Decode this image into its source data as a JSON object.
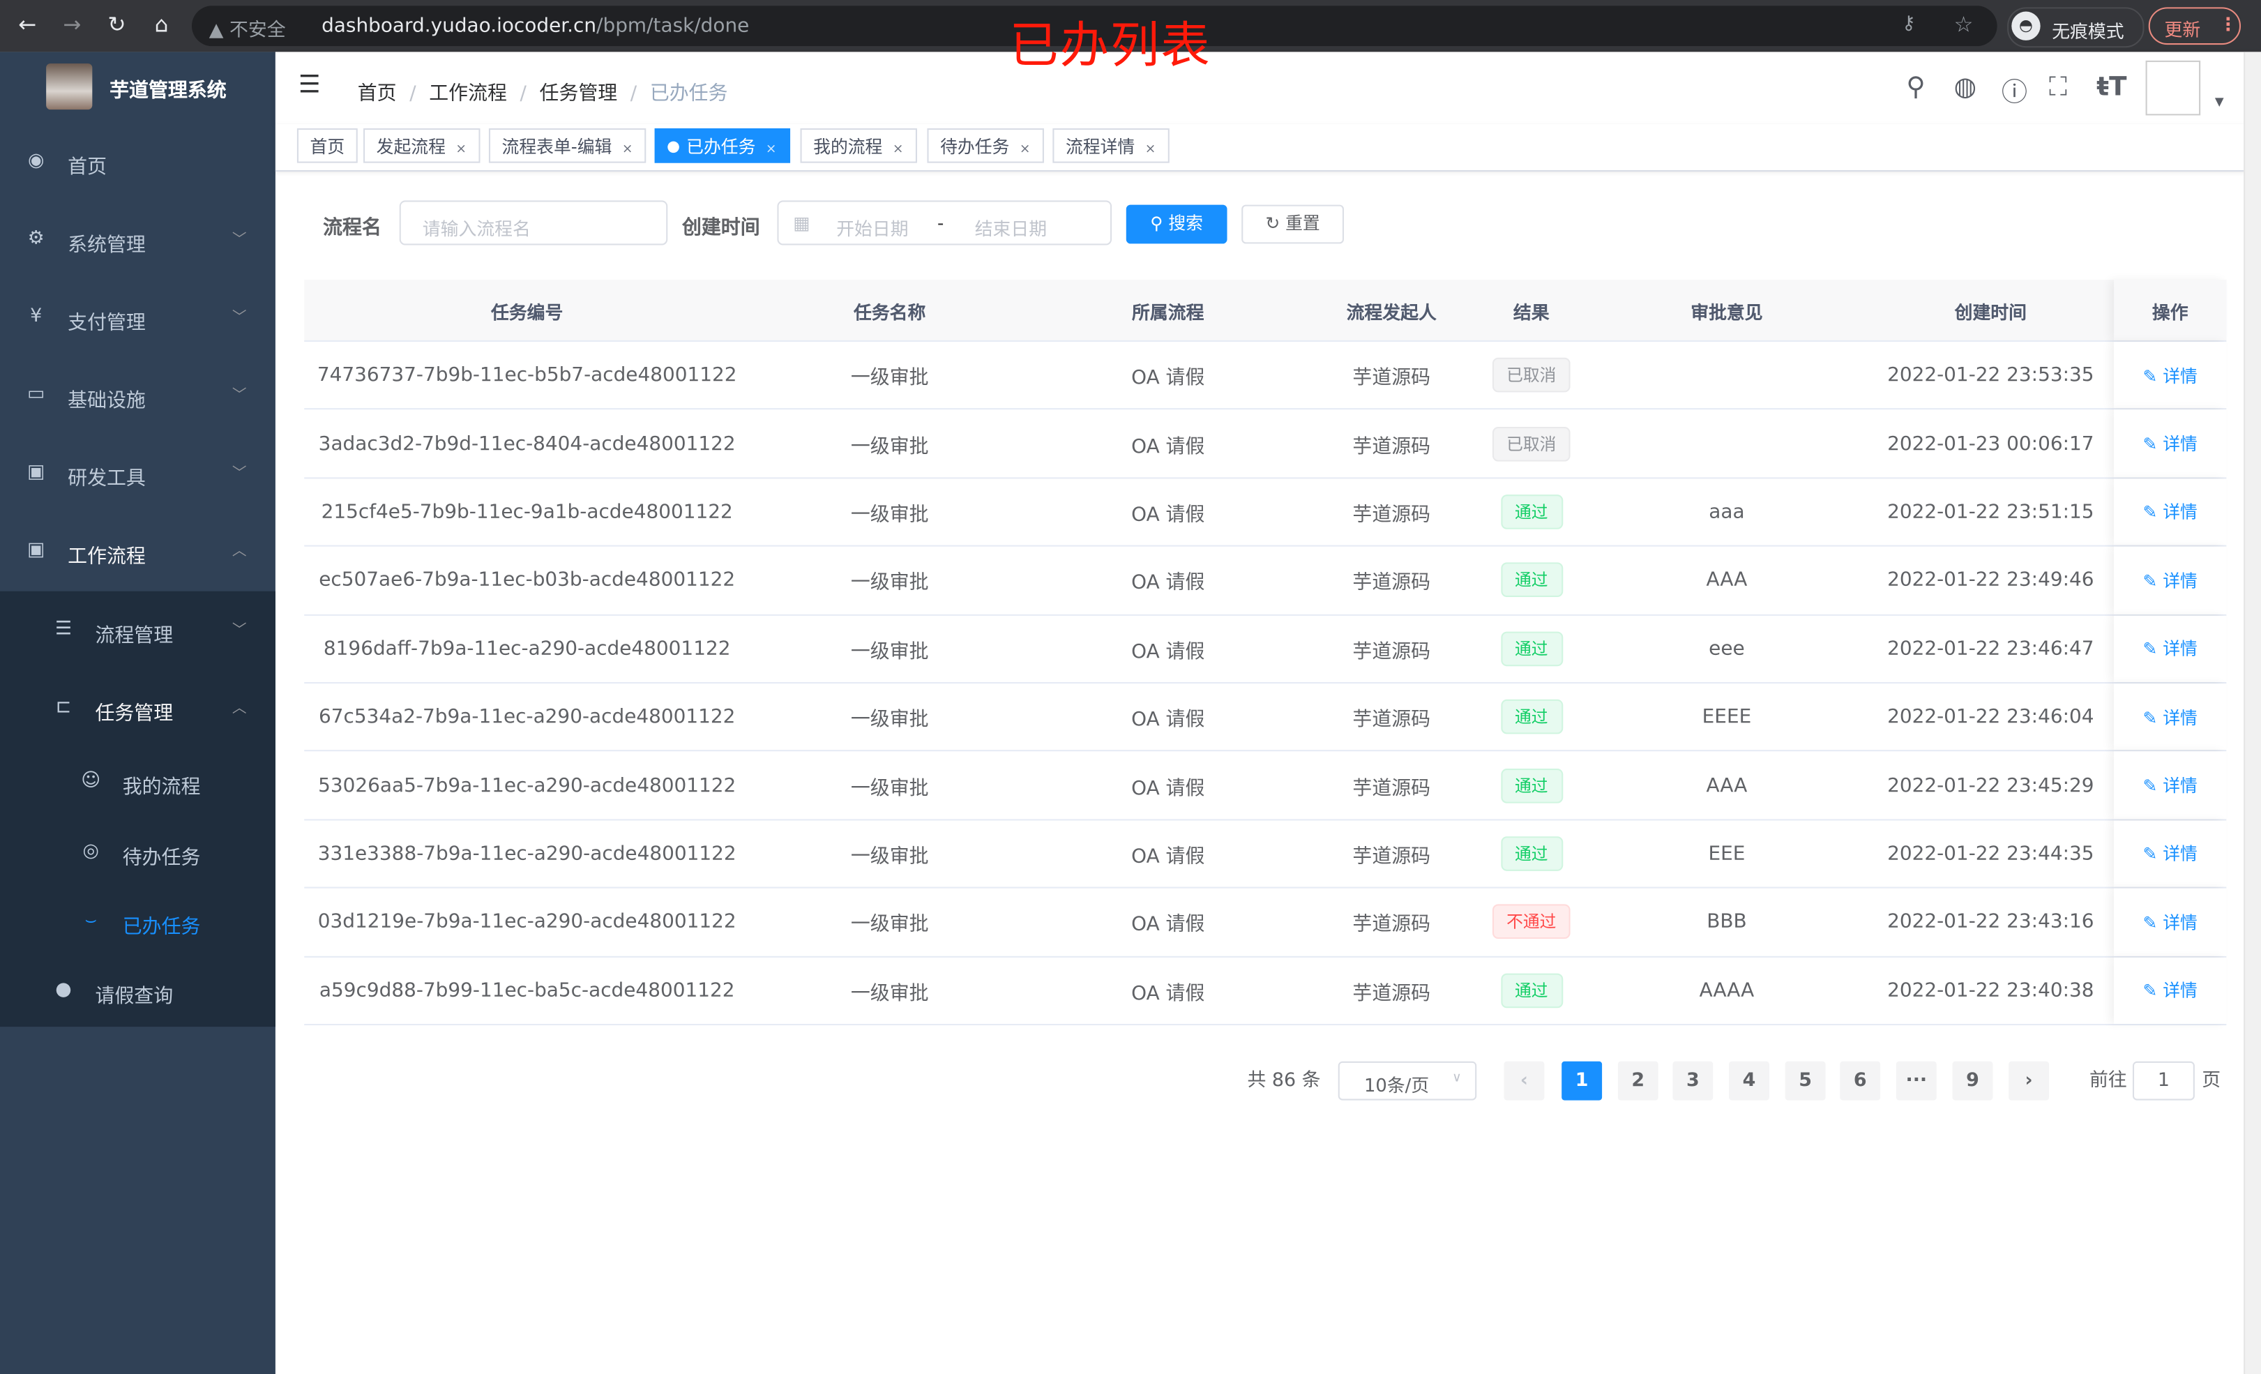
{
  "browser": {
    "insecure_label": "不安全",
    "url_host": "dashboard.yudao.iocoder.cn",
    "url_path": "/bpm/task/done",
    "incognito_label": "无痕模式",
    "update_label": "更新"
  },
  "annotation": "已办列表",
  "sidebar": {
    "title": "芋道管理系统",
    "items": [
      {
        "label": "首页",
        "icon": "dashboard-icon"
      },
      {
        "label": "系统管理",
        "icon": "gear-icon"
      },
      {
        "label": "支付管理",
        "icon": "yen-icon"
      },
      {
        "label": "基础设施",
        "icon": "monitor-icon"
      },
      {
        "label": "研发工具",
        "icon": "toolbox-icon"
      },
      {
        "label": "工作流程",
        "icon": "toolbox-icon"
      }
    ],
    "sub_items": [
      {
        "label": "流程管理",
        "icon": "list-icon"
      },
      {
        "label": "任务管理",
        "icon": "tree-icon"
      },
      {
        "label": "我的流程",
        "icon": "chat-icon"
      },
      {
        "label": "待办任务",
        "icon": "eye-icon"
      },
      {
        "label": "已办任务",
        "icon": "eye-closed-icon",
        "active": true
      },
      {
        "label": "请假查询",
        "icon": "user-icon"
      }
    ]
  },
  "breadcrumb": [
    "首页",
    "工作流程",
    "任务管理",
    "已办任务"
  ],
  "tags": [
    {
      "label": "首页"
    },
    {
      "label": "发起流程"
    },
    {
      "label": "流程表单-编辑"
    },
    {
      "label": "已办任务",
      "active": true
    },
    {
      "label": "我的流程"
    },
    {
      "label": "待办任务"
    },
    {
      "label": "流程详情"
    }
  ],
  "search": {
    "name_label": "流程名",
    "name_placeholder": "请输入流程名",
    "time_label": "创建时间",
    "start_placeholder": "开始日期",
    "range_sep": "-",
    "end_placeholder": "结束日期",
    "search_btn": "搜索",
    "reset_btn": "重置"
  },
  "table": {
    "columns": [
      "任务编号",
      "任务名称",
      "所属流程",
      "流程发起人",
      "结果",
      "审批意见",
      "创建时间",
      "操作"
    ],
    "action_label": "详情",
    "rows": [
      {
        "id": "74736737-7b9b-11ec-b5b7-acde48001122",
        "name": "一级审批",
        "process": "OA 请假",
        "starter": "芋道源码",
        "result": "已取消",
        "result_type": "cancel",
        "comment": "",
        "time": "2022-01-22 23:53:35"
      },
      {
        "id": "3adac3d2-7b9d-11ec-8404-acde48001122",
        "name": "一级审批",
        "process": "OA 请假",
        "starter": "芋道源码",
        "result": "已取消",
        "result_type": "cancel",
        "comment": "",
        "time": "2022-01-23 00:06:17"
      },
      {
        "id": "215cf4e5-7b9b-11ec-9a1b-acde48001122",
        "name": "一级审批",
        "process": "OA 请假",
        "starter": "芋道源码",
        "result": "通过",
        "result_type": "pass",
        "comment": "aaa",
        "time": "2022-01-22 23:51:15"
      },
      {
        "id": "ec507ae6-7b9a-11ec-b03b-acde48001122",
        "name": "一级审批",
        "process": "OA 请假",
        "starter": "芋道源码",
        "result": "通过",
        "result_type": "pass",
        "comment": "AAA",
        "time": "2022-01-22 23:49:46"
      },
      {
        "id": "8196daff-7b9a-11ec-a290-acde48001122",
        "name": "一级审批",
        "process": "OA 请假",
        "starter": "芋道源码",
        "result": "通过",
        "result_type": "pass",
        "comment": "eee",
        "time": "2022-01-22 23:46:47"
      },
      {
        "id": "67c534a2-7b9a-11ec-a290-acde48001122",
        "name": "一级审批",
        "process": "OA 请假",
        "starter": "芋道源码",
        "result": "通过",
        "result_type": "pass",
        "comment": "EEEE",
        "time": "2022-01-22 23:46:04"
      },
      {
        "id": "53026aa5-7b9a-11ec-a290-acde48001122",
        "name": "一级审批",
        "process": "OA 请假",
        "starter": "芋道源码",
        "result": "通过",
        "result_type": "pass",
        "comment": "AAA",
        "time": "2022-01-22 23:45:29"
      },
      {
        "id": "331e3388-7b9a-11ec-a290-acde48001122",
        "name": "一级审批",
        "process": "OA 请假",
        "starter": "芋道源码",
        "result": "通过",
        "result_type": "pass",
        "comment": "EEE",
        "time": "2022-01-22 23:44:35"
      },
      {
        "id": "03d1219e-7b9a-11ec-a290-acde48001122",
        "name": "一级审批",
        "process": "OA 请假",
        "starter": "芋道源码",
        "result": "不通过",
        "result_type": "fail",
        "comment": "BBB",
        "time": "2022-01-22 23:43:16"
      },
      {
        "id": "a59c9d88-7b99-11ec-ba5c-acde48001122",
        "name": "一级审批",
        "process": "OA 请假",
        "starter": "芋道源码",
        "result": "通过",
        "result_type": "pass",
        "comment": "AAAA",
        "time": "2022-01-22 23:40:38"
      }
    ]
  },
  "pagination": {
    "total_label": "共 86 条",
    "page_size": "10条/页",
    "pages": [
      "1",
      "2",
      "3",
      "4",
      "5",
      "6",
      "···",
      "9"
    ],
    "current": "1",
    "goto_label": "前往",
    "goto_value": "1",
    "page_suffix": "页"
  },
  "colors": {
    "primary": "#1890ff",
    "sidebar": "#304156",
    "pass": "#13ce66",
    "fail": "#ff4949"
  }
}
